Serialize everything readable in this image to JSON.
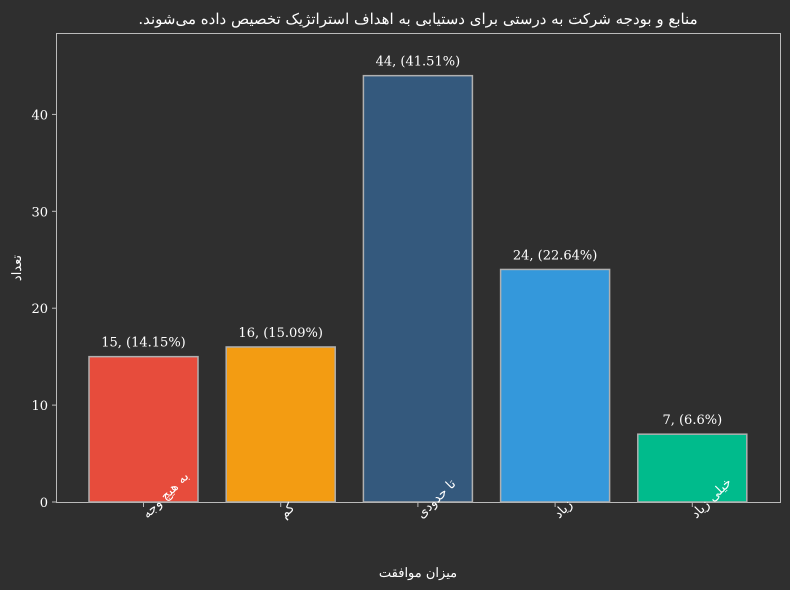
{
  "chart_data": {
    "type": "bar",
    "title": "منابع و بودجه شرکت به درستی برای دستیابی به اهداف استراتژیک تخصیص داده می‌شوند.",
    "xlabel": "میزان موافقت",
    "ylabel": "تعداد",
    "categories": [
      "به هیچ وجه",
      "کم",
      "تا حدودی",
      "زیاد",
      "خیلی زیاد"
    ],
    "values": [
      15,
      16,
      44,
      24,
      7
    ],
    "data_labels": [
      "15, (14.15%)",
      "16, (15.09%)",
      "44, (41.51%)",
      "24, (22.64%)",
      "7, (6.6%)"
    ],
    "colors": [
      "#e74c3c",
      "#f39c12",
      "#34597d",
      "#3498db",
      "#00bb8c"
    ],
    "yticks": [
      0,
      10,
      20,
      30,
      40
    ],
    "ylim": [
      0,
      48.3
    ],
    "grid": false,
    "legend": "none"
  },
  "colors": {
    "background": "#2f2f2f",
    "axis": "#bbbbbb",
    "bar_edge": "#b0b0b0",
    "text": "#ffffff"
  }
}
